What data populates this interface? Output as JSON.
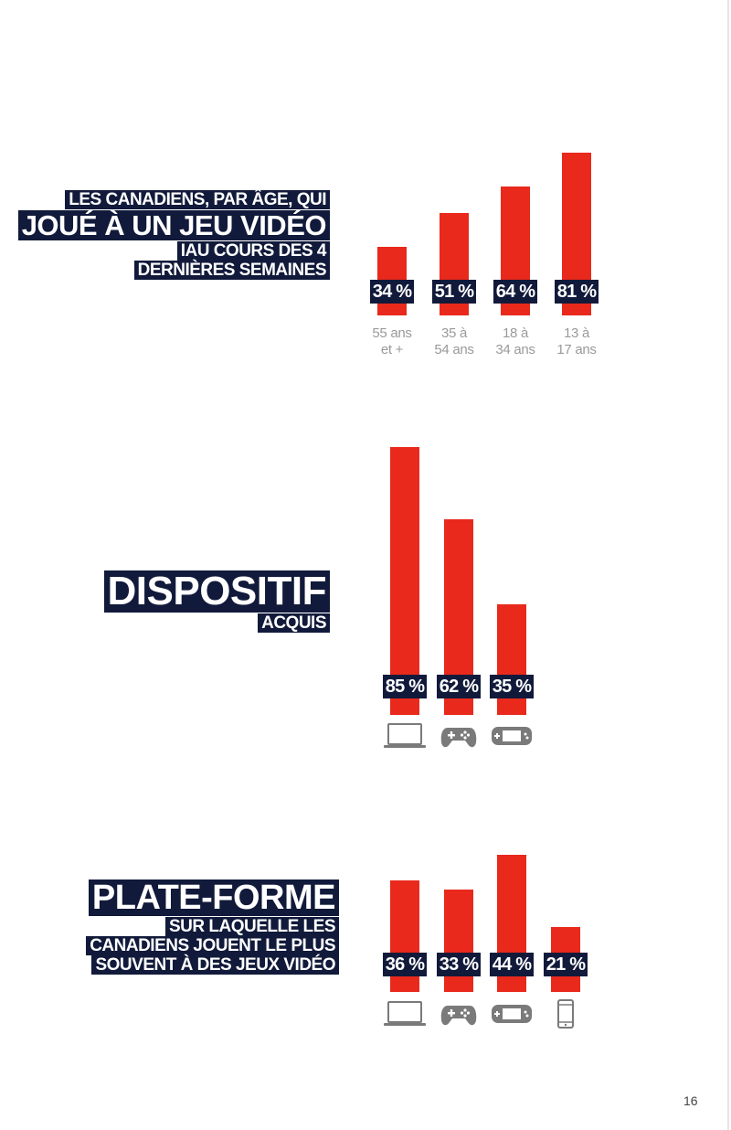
{
  "page_number": "16",
  "colors": {
    "bar": "#e8291c",
    "label_bg": "#111a3a",
    "axis_text": "#9a9a9a",
    "icon": "#7a7a7a"
  },
  "section1": {
    "title_line1": "LES CANADIENS, PAR ÂGE, QUI",
    "title_line2": "JOUÉ À UN JEU VIDÉO",
    "title_line3": "IAU COURS DES 4",
    "title_line4": "DERNIÈRES SEMAINES"
  },
  "section2": {
    "title_line1": "DISPOSITIF",
    "title_line2": "ACQUIS"
  },
  "section3": {
    "title_line1": "PLATE-FORME",
    "title_line2": "SUR LAQUELLE LES",
    "title_line3": "CANADIENS JOUENT LE PLUS",
    "title_line4": "SOUVENT À DES JEUX VIDÉO"
  },
  "chart_data": [
    {
      "type": "bar",
      "categories": [
        "55 ans et +",
        "35 à 54 ans",
        "18 à 34 ans",
        "13 à 17 ans"
      ],
      "category_lines": [
        [
          "55 ans",
          "et +"
        ],
        [
          "35 à",
          "54 ans"
        ],
        [
          "18 à",
          "34 ans"
        ],
        [
          "13 à",
          "17 ans"
        ]
      ],
      "values": [
        34,
        51,
        64,
        81
      ],
      "value_labels": [
        "34 %",
        "51 %",
        "64 %",
        "81 %"
      ],
      "unit": "%"
    },
    {
      "type": "bar",
      "categories": [
        "laptop-icon",
        "gamepad-icon",
        "handheld-console-icon"
      ],
      "values": [
        85,
        62,
        35
      ],
      "value_labels": [
        "85 %",
        "62 %",
        "35 %"
      ],
      "unit": "%"
    },
    {
      "type": "bar",
      "categories": [
        "laptop-icon",
        "gamepad-icon",
        "handheld-console-icon",
        "smartphone-icon"
      ],
      "values": [
        36,
        33,
        44,
        21
      ],
      "value_labels": [
        "36 %",
        "33 %",
        "44 %",
        "21 %"
      ],
      "unit": "%"
    }
  ]
}
